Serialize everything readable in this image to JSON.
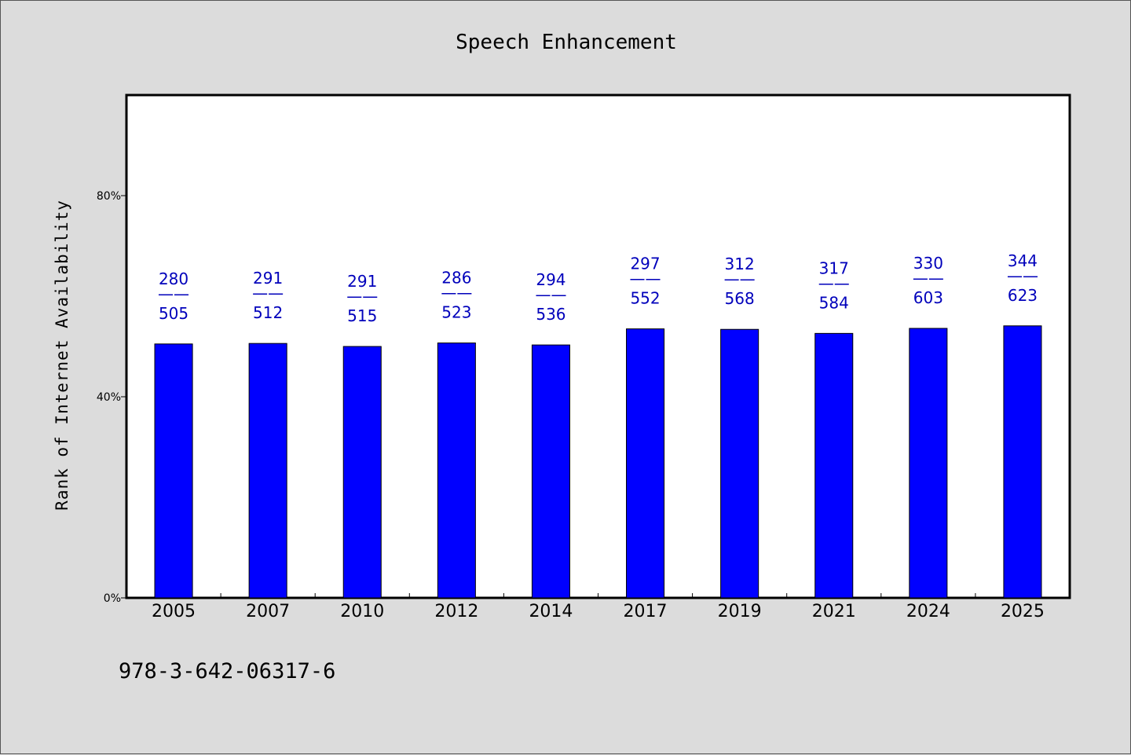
{
  "chart_data": {
    "type": "bar",
    "title": "Speech Enhancement",
    "ylabel": "Rank of Internet Availability",
    "xlabel": "",
    "ylim": [
      0,
      100
    ],
    "yticks": [
      0,
      40,
      80
    ],
    "ytick_labels": [
      "0%",
      "40%",
      "80%"
    ],
    "categories": [
      "2005",
      "2007",
      "2010",
      "2012",
      "2014",
      "2017",
      "2019",
      "2021",
      "2024",
      "2025"
    ],
    "values": [
      50.5,
      50.6,
      50.0,
      50.7,
      50.3,
      53.5,
      53.4,
      52.6,
      53.6,
      54.1
    ],
    "data_labels": [
      {
        "top": "280",
        "sep": "——",
        "bottom": "505"
      },
      {
        "top": "291",
        "sep": "——",
        "bottom": "512"
      },
      {
        "top": "291",
        "sep": "——",
        "bottom": "515"
      },
      {
        "top": "286",
        "sep": "——",
        "bottom": "523"
      },
      {
        "top": "294",
        "sep": "——",
        "bottom": "536"
      },
      {
        "top": "297",
        "sep": "——",
        "bottom": "552"
      },
      {
        "top": "312",
        "sep": "——",
        "bottom": "568"
      },
      {
        "top": "317",
        "sep": "——",
        "bottom": "584"
      },
      {
        "top": "330",
        "sep": "——",
        "bottom": "603"
      },
      {
        "top": "344",
        "sep": "——",
        "bottom": "623"
      }
    ],
    "grid": false,
    "legend": "none",
    "bar_color": "#0000ff",
    "label_color": "#0000bb"
  },
  "footnote": "978-3-642-06317-6"
}
